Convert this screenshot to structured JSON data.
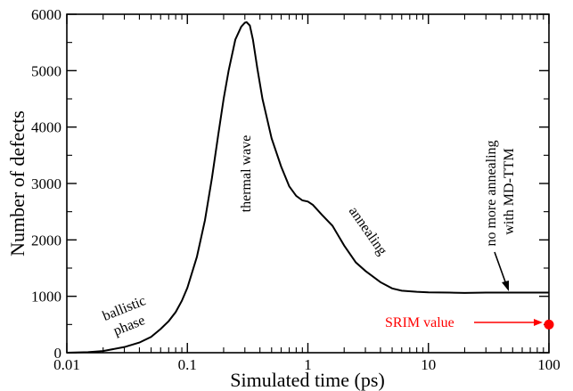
{
  "chart_data": {
    "type": "line",
    "xlabel": "Simulated time (ps)",
    "ylabel": "Number of defects",
    "x_scale": "log",
    "xlim": [
      0.01,
      100
    ],
    "ylim": [
      0,
      6000
    ],
    "x_ticks": [
      0.01,
      0.1,
      1,
      10,
      100
    ],
    "x_tick_labels": [
      "0.01",
      "0.1",
      "1",
      "10",
      "100"
    ],
    "y_ticks": [
      0,
      1000,
      2000,
      3000,
      4000,
      5000,
      6000
    ],
    "y_tick_labels": [
      "0",
      "1000",
      "2000",
      "3000",
      "4000",
      "5000",
      "6000"
    ],
    "grid": false,
    "series": [
      {
        "color": "#000000",
        "x": [
          0.01,
          0.015,
          0.02,
          0.03,
          0.04,
          0.05,
          0.06,
          0.07,
          0.08,
          0.09,
          0.1,
          0.12,
          0.14,
          0.16,
          0.18,
          0.2,
          0.22,
          0.25,
          0.28,
          0.3,
          0.31,
          0.33,
          0.35,
          0.38,
          0.42,
          0.5,
          0.6,
          0.7,
          0.8,
          0.9,
          1.0,
          1.1,
          1.3,
          1.6,
          2.0,
          2.5,
          3.0,
          4.0,
          5.0,
          6.0,
          8.0,
          10,
          15,
          20,
          30,
          50,
          100
        ],
        "y": [
          0,
          10,
          30,
          100,
          180,
          280,
          420,
          560,
          720,
          920,
          1150,
          1700,
          2350,
          3100,
          3850,
          4500,
          5000,
          5550,
          5780,
          5850,
          5860,
          5800,
          5550,
          5050,
          4500,
          3800,
          3300,
          2950,
          2780,
          2700,
          2680,
          2620,
          2450,
          2250,
          1900,
          1600,
          1450,
          1250,
          1140,
          1100,
          1080,
          1070,
          1065,
          1060,
          1065,
          1065,
          1065
        ]
      }
    ],
    "annotations": {
      "ballistic_1": "ballistic",
      "ballistic_2": "phase",
      "thermal": "thermal wave",
      "annealing": "annealing",
      "no_more_1": "no more annealing",
      "no_more_2": "with MD-TTM",
      "srim_label": "SRIM value"
    },
    "srim_point": {
      "x": 100,
      "y": 500,
      "color": "#ff0000"
    }
  }
}
